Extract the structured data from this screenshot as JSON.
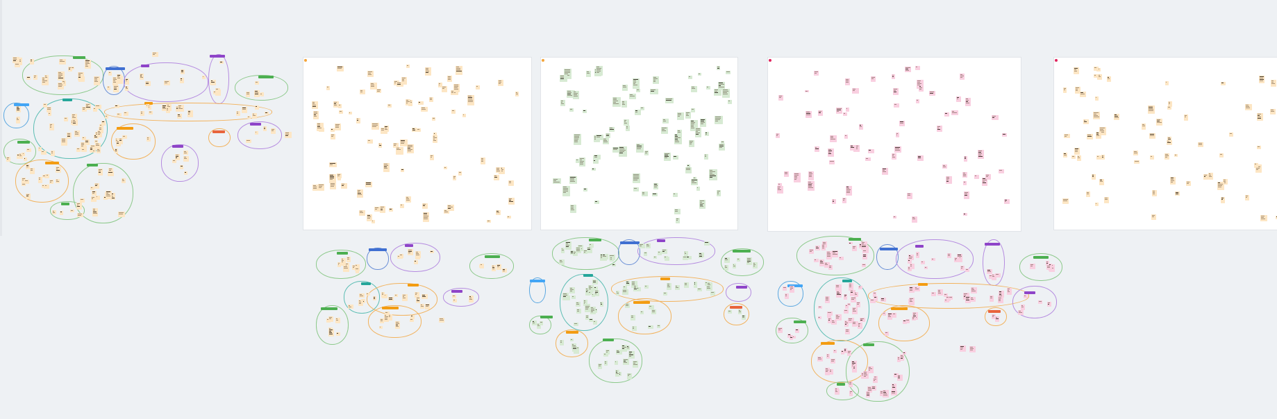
{
  "board": {
    "title": "",
    "background_color": "#eef1f4",
    "frames": [
      {
        "name": "frame-1",
        "label": "",
        "dot_color": "#f4a53b",
        "note_color": "#fde6c4"
      },
      {
        "name": "frame-2",
        "label": "",
        "dot_color": "#f4a53b",
        "note_color": "#d7ead3"
      },
      {
        "name": "frame-3",
        "label": "",
        "dot_color": "#e0245e",
        "note_color": "#f9cfe0"
      },
      {
        "name": "frame-4",
        "label": "",
        "dot_color": "#e0245e",
        "note_color": "#fde6c4"
      }
    ]
  },
  "palette": {
    "peach": "#fde6c4",
    "green": "#d7ead3",
    "pink": "#f9cfe0",
    "cluster_green": "#8cc98a",
    "cluster_blue": "#6a8fd6",
    "cluster_purple": "#b58be0",
    "cluster_teal": "#5bbdb3",
    "cluster_orange": "#f2b25c",
    "tag_green": "#4caf50",
    "tag_blue": "#3f6fd1",
    "tag_purple": "#8e44c8",
    "tag_teal": "#26a69a",
    "tag_orange": "#f39c12",
    "tag_red": "#e8643c",
    "tag_lightblue": "#42a5f5"
  }
}
